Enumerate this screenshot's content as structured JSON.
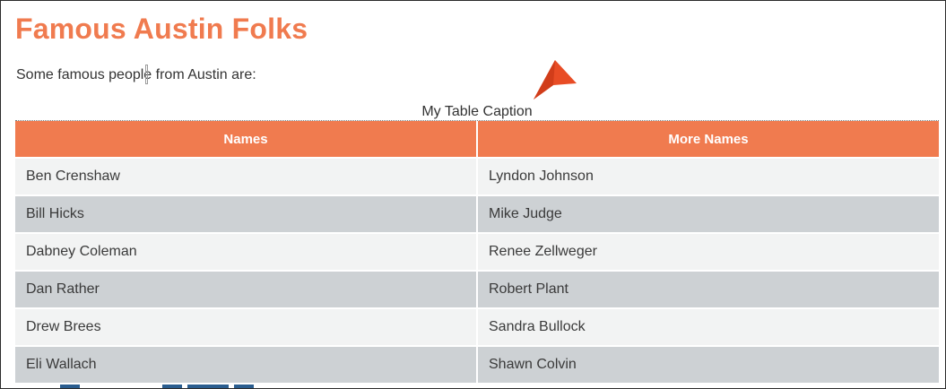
{
  "page": {
    "title": "Famous Austin Folks",
    "intro": "Some famous people from Austin are:"
  },
  "table": {
    "caption": "My Table Caption",
    "headers": [
      "Names",
      "More Names"
    ],
    "rows": [
      [
        "Ben Crenshaw",
        "Lyndon Johnson"
      ],
      [
        "Bill Hicks",
        "Mike Judge"
      ],
      [
        "Dabney Coleman",
        "Renee Zellweger"
      ],
      [
        "Dan Rather",
        "Robert Plant"
      ],
      [
        "Drew Brees",
        "Sandra Bullock"
      ],
      [
        "Eli Wallach",
        "Shawn Colvin"
      ]
    ]
  },
  "colors": {
    "accent": "#f07b4f",
    "row_odd": "#f2f3f3",
    "row_even": "#cdd1d4",
    "pointer": "#e84c25"
  },
  "icons": {
    "pointer": "arrow-pointer-icon",
    "caret": "text-caret-icon"
  }
}
